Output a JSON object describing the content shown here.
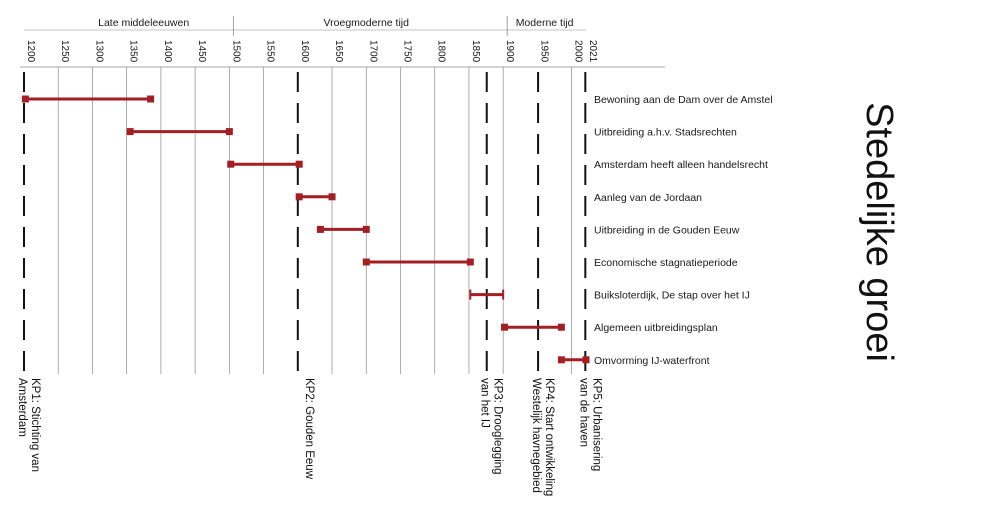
{
  "title": "Stedelijke groei",
  "colors": {
    "bar": "#a31f24",
    "grid": "#8a8a8a",
    "axis": "#222222",
    "key_point": "#111111"
  },
  "chart_data": {
    "type": "gantt-timeline",
    "title": "Stedelijke groei",
    "x_ticks": [
      1200,
      1250,
      1300,
      1350,
      1400,
      1450,
      1500,
      1550,
      1600,
      1650,
      1700,
      1750,
      1800,
      1850,
      1900,
      1950,
      2000,
      2021
    ],
    "x_tick_labels": [
      "1200",
      "1250",
      "1300",
      "1350",
      "1400",
      "1450",
      "1500",
      "1550",
      "1600",
      "1650",
      "1700",
      "1750",
      "1800",
      "1850",
      "1900",
      "1950",
      "2000",
      "2021"
    ],
    "eras": [
      {
        "label": "Late middeleeuwen",
        "start": 1200,
        "end": 1500
      },
      {
        "label": "Vroegmoderne tijd",
        "start": 1500,
        "end": 1900
      },
      {
        "label": "Moderne tijd",
        "start": 1900,
        "end": 2021
      }
    ],
    "periods": [
      {
        "label": "Bewoning aan de Dam over  de Amstel",
        "start": 1202,
        "end": 1385
      },
      {
        "label": "Uitbreiding a.h.v. Stadsrechten",
        "start": 1355,
        "end": 1500
      },
      {
        "label": "Amsterdam heeft alleen handelsrecht",
        "start": 1502,
        "end": 1602
      },
      {
        "label": "Aanleg van de Jordaan",
        "start": 1602,
        "end": 1650
      },
      {
        "label": "Uitbreiding in de Gouden Eeuw",
        "start": 1633,
        "end": 1700
      },
      {
        "label": "Economische stagnatieperiode",
        "start": 1700,
        "end": 1852
      },
      {
        "label": "Buiksloterdijk, De stap over het IJ",
        "start": 1852,
        "end": 1900
      },
      {
        "label": "Algemeen uitbreidingsplan",
        "start": 1902,
        "end": 1985
      },
      {
        "label": "Omvorming IJ-waterfront",
        "start": 1985,
        "end": 2021
      }
    ],
    "key_points": [
      {
        "year": 1200,
        "lines": [
          "KP1: Stichting van",
          "Amsterdam"
        ]
      },
      {
        "year": 1600,
        "lines": [
          "KP2: Gouden Eeuw"
        ]
      },
      {
        "year": 1876,
        "lines": [
          "KP3: Drooglegging",
          "van het IJ"
        ]
      },
      {
        "year": 1951,
        "lines": [
          "KP4: Start ontwikkeling",
          "Westelijk havnegebied"
        ]
      },
      {
        "year": 2020,
        "lines": [
          "KP5: Urbanisering",
          "van de haven"
        ]
      }
    ]
  }
}
